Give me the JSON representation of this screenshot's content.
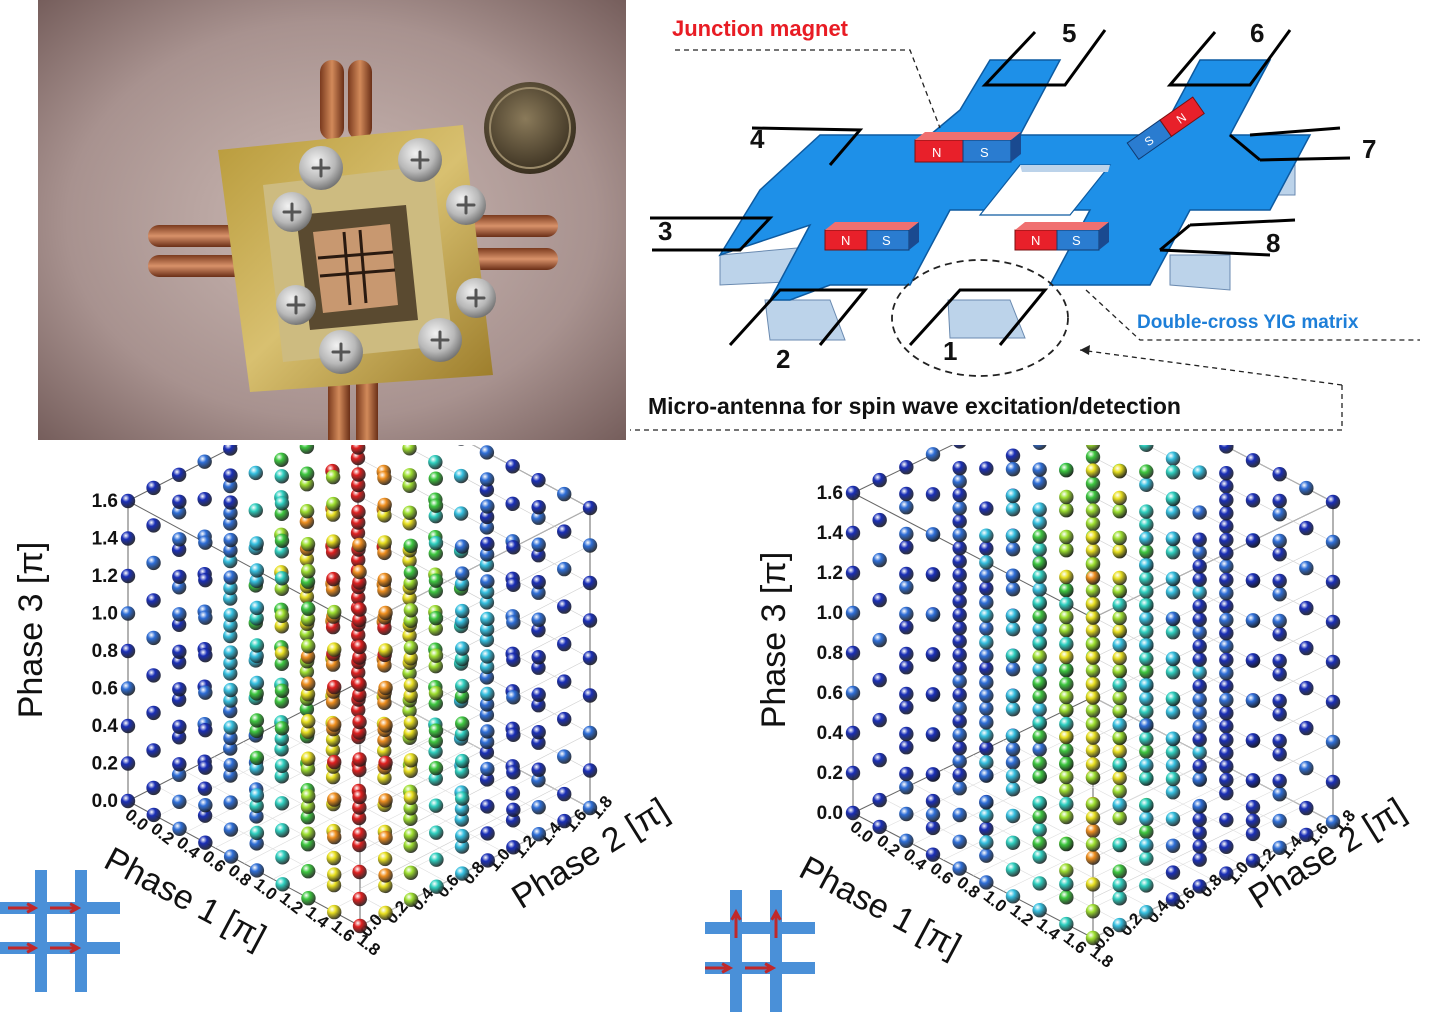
{
  "photo": {
    "description_icons": [
      "device-photo",
      "coin"
    ]
  },
  "schematic": {
    "junction_magnet_label": "Junction magnet",
    "yig_label": "Double-cross YIG matrix",
    "antenna_label": "Micro-antenna for spin wave excitation/detection",
    "port_labels": [
      "1",
      "2",
      "3",
      "4",
      "5",
      "6",
      "7",
      "8"
    ],
    "magnet_n": "N",
    "magnet_s": "S",
    "colors": {
      "yig": "#1e90e8",
      "yig_side": "#bcd3ea",
      "magnet_n": "#e8202a",
      "magnet_s": "#2a7cd0",
      "label_red": "#e81c24",
      "label_blue": "#1e7fd8"
    }
  },
  "chart_data": [
    {
      "type": "scatter",
      "title": "",
      "xlabel": "Phase 1 [π]",
      "ylabel": "Phase 2 [π]",
      "zlabel": "Phase 3 [π]",
      "z_ticks": [
        "0.0",
        "0.2",
        "0.4",
        "0.6",
        "0.8",
        "1.0",
        "1.2",
        "1.4",
        "1.6"
      ],
      "x_ticks": [
        "0.0",
        "0.2",
        "0.4",
        "0.6",
        "0.8",
        "1.0",
        "1.2",
        "1.4",
        "1.6",
        "1.8"
      ],
      "y_ticks": [
        "0.0",
        "0.2",
        "0.4",
        "0.6",
        "0.8",
        "1.0",
        "1.2",
        "1.4",
        "1.6",
        "1.8"
      ],
      "xlim": [
        0,
        1.8
      ],
      "ylim": [
        0,
        1.8
      ],
      "zlim": [
        0,
        1.6
      ],
      "inset": "double-cross-two-horizontal-arrows"
    },
    {
      "type": "scatter",
      "title": "",
      "xlabel": "Phase 1 [π]",
      "ylabel": "Phase 2 [π]",
      "zlabel": "Phase 3 [π]",
      "z_ticks": [
        "0.0",
        "0.2",
        "0.4",
        "0.6",
        "0.8",
        "1.0",
        "1.2",
        "1.4",
        "1.6"
      ],
      "x_ticks": [
        "0.0",
        "0.2",
        "0.4",
        "0.6",
        "0.8",
        "1.0",
        "1.2",
        "1.4",
        "1.6",
        "1.8"
      ],
      "y_ticks": [
        "0.0",
        "0.2",
        "0.4",
        "0.6",
        "0.8",
        "1.0",
        "1.2",
        "1.4",
        "1.6",
        "1.8"
      ],
      "xlim": [
        0,
        1.8
      ],
      "ylim": [
        0,
        1.8
      ],
      "zlim": [
        0,
        1.6
      ],
      "inset": "double-cross-up-and-right-arrows"
    }
  ]
}
